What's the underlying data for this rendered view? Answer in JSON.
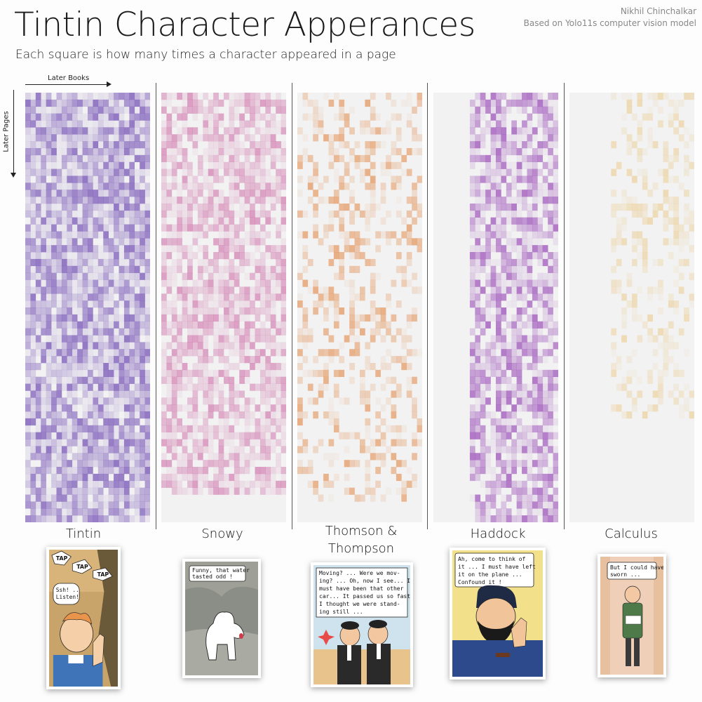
{
  "header": {
    "title": "Tintin Character Apperances",
    "subtitle": "Each square is how many times a character appeared in a page",
    "credit_author": "Nikhil Chinchalkar",
    "credit_source": "Based on Yolo11s computer vision model"
  },
  "axes": {
    "x_label": "Later Books",
    "y_label": "Later Pages"
  },
  "chart_data": {
    "type": "heatmap",
    "title": "Tintin Character Apperances",
    "subtitle": "Each square is how many times a character appeared in a page",
    "xlabel": "Later Books",
    "ylabel": "Later Pages",
    "grid": false,
    "columns": 24,
    "rows": 62,
    "series": [
      {
        "name": "Tintin",
        "color": "#7b5ab8",
        "density": 0.96,
        "max_intensity": 0.75,
        "col_start": 0,
        "col_end": 23,
        "row_end": 61
      },
      {
        "name": "Snowy",
        "color": "#c44a93",
        "density": 0.8,
        "max_intensity": 0.45,
        "col_start": 0,
        "col_end": 23,
        "row_end": 57
      },
      {
        "name": "Thomson & Thompson",
        "color": "#e28a4a",
        "density": 0.35,
        "max_intensity": 0.6,
        "col_start": 0,
        "col_end": 23,
        "row_end": 58
      },
      {
        "name": "Haddock",
        "color": "#9b4fb8",
        "density": 0.8,
        "max_intensity": 0.7,
        "col_start": 7,
        "col_end": 23,
        "row_end": 61
      },
      {
        "name": "Calculus",
        "color": "#e8b85a",
        "density": 0.35,
        "max_intensity": 0.35,
        "col_start": 8,
        "col_end": 23,
        "row_end": 46
      }
    ]
  },
  "comics": {
    "tintin": {
      "lines": [
        "Ssh! ..",
        "Listen!"
      ],
      "sfx": [
        "TAP",
        "TAP",
        "TAP"
      ]
    },
    "snowy": {
      "lines": [
        "Funny, that water",
        "tasted odd !"
      ]
    },
    "thomson": {
      "lines": [
        "Moving? ... Were we mov-",
        "ing? ... Oh, now I see... It",
        "must have been that other",
        "car... It passed us so fast",
        "I thought we were stand-",
        "ing still ..."
      ]
    },
    "haddock": {
      "lines": [
        "Ah, come to think of",
        "it ... I must have left",
        "it on the plane ...",
        "Confound it !"
      ]
    },
    "calculus": {
      "lines": [
        "But I could have",
        "sworn ..."
      ]
    }
  },
  "colors": {
    "background": "#fdfdfd",
    "panel_bg": "#f2f2f2",
    "tintin": "#7b5ab8",
    "snowy": "#c44a93",
    "thomson": "#e28a4a",
    "haddock": "#9b4fb8",
    "calculus": "#e8b85a"
  }
}
